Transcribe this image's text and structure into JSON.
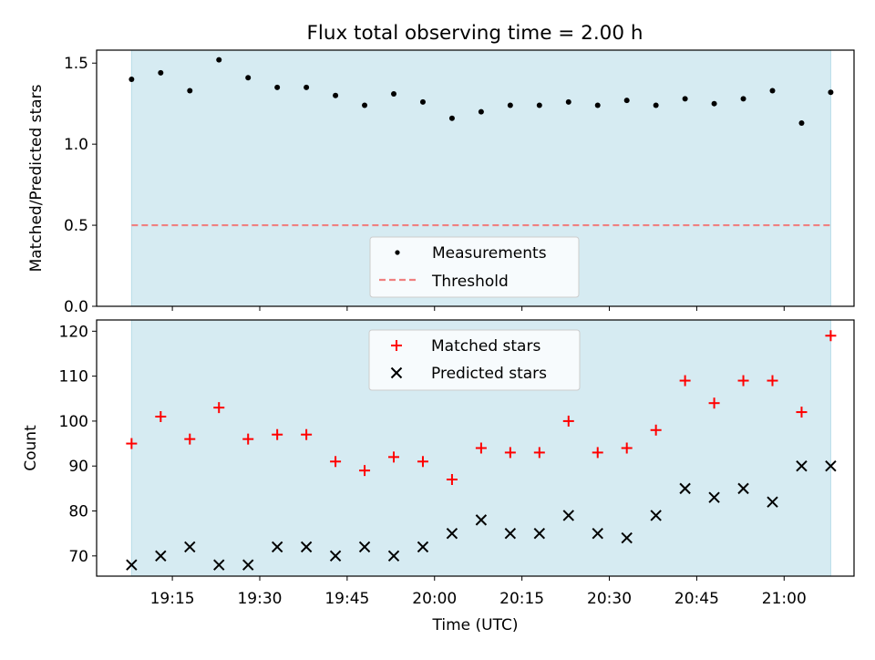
{
  "title": "Flux total observing time = 2.00 h",
  "colors": {
    "band": "#add8e6",
    "measurement": "#000000",
    "threshold": "#f08080",
    "matched": "#ff0000",
    "predicted": "#000000"
  },
  "chart_data": [
    {
      "type": "scatter",
      "ylabel": "Matched/Predicted stars",
      "ylim": [
        0,
        1.58
      ],
      "yticks": [
        0,
        0.5,
        1.0,
        1.5
      ],
      "ytick_labels": [
        "0.0",
        "0.5",
        "1.0",
        "1.5"
      ],
      "x_range": [
        "19:02",
        "21:12"
      ],
      "band": [
        "19:08",
        "21:08"
      ],
      "legend": {
        "position": "lower center",
        "entries": [
          "Measurements",
          "Threshold"
        ]
      },
      "threshold": 0.5,
      "series": [
        {
          "name": "Measurements",
          "x": [
            "19:08",
            "19:13",
            "19:18",
            "19:23",
            "19:28",
            "19:33",
            "19:38",
            "19:43",
            "19:48",
            "19:53",
            "19:58",
            "20:03",
            "20:08",
            "20:13",
            "20:18",
            "20:23",
            "20:28",
            "20:33",
            "20:38",
            "20:43",
            "20:48",
            "20:53",
            "20:58",
            "21:03",
            "21:08"
          ],
          "values": [
            1.4,
            1.44,
            1.33,
            1.52,
            1.41,
            1.35,
            1.35,
            1.3,
            1.24,
            1.31,
            1.26,
            1.16,
            1.2,
            1.24,
            1.24,
            1.26,
            1.24,
            1.27,
            1.24,
            1.28,
            1.25,
            1.28,
            1.33,
            1.13,
            1.32
          ]
        }
      ]
    },
    {
      "type": "scatter",
      "xlabel": "Time (UTC)",
      "ylabel": "Count",
      "ylim": [
        65.5,
        122.5
      ],
      "yticks": [
        70,
        80,
        90,
        100,
        110,
        120
      ],
      "ytick_labels": [
        "70",
        "80",
        "90",
        "100",
        "110",
        "120"
      ],
      "x_range": [
        "19:02",
        "21:12"
      ],
      "xticks": [
        "19:15",
        "19:30",
        "19:45",
        "20:00",
        "20:15",
        "20:30",
        "20:45",
        "21:00"
      ],
      "band": [
        "19:08",
        "21:08"
      ],
      "legend": {
        "position": "upper center",
        "entries": [
          "Matched stars",
          "Predicted stars"
        ]
      },
      "series": [
        {
          "name": "Matched stars",
          "x": [
            "19:08",
            "19:13",
            "19:18",
            "19:23",
            "19:28",
            "19:33",
            "19:38",
            "19:43",
            "19:48",
            "19:53",
            "19:58",
            "20:03",
            "20:08",
            "20:13",
            "20:18",
            "20:23",
            "20:28",
            "20:33",
            "20:38",
            "20:43",
            "20:48",
            "20:53",
            "20:58",
            "21:03",
            "21:08"
          ],
          "values": [
            95,
            101,
            96,
            103,
            96,
            97,
            97,
            91,
            89,
            92,
            91,
            87,
            94,
            93,
            93,
            100,
            93,
            94,
            98,
            109,
            104,
            109,
            109,
            102,
            119
          ]
        },
        {
          "name": "Predicted stars",
          "x": [
            "19:08",
            "19:13",
            "19:18",
            "19:23",
            "19:28",
            "19:33",
            "19:38",
            "19:43",
            "19:48",
            "19:53",
            "19:58",
            "20:03",
            "20:08",
            "20:13",
            "20:18",
            "20:23",
            "20:28",
            "20:33",
            "20:38",
            "20:43",
            "20:48",
            "20:53",
            "20:58",
            "21:03",
            "21:08"
          ],
          "values": [
            68,
            70,
            72,
            68,
            68,
            72,
            72,
            70,
            72,
            70,
            72,
            75,
            78,
            75,
            75,
            79,
            75,
            74,
            79,
            85,
            83,
            85,
            82,
            90,
            90
          ]
        }
      ]
    }
  ]
}
